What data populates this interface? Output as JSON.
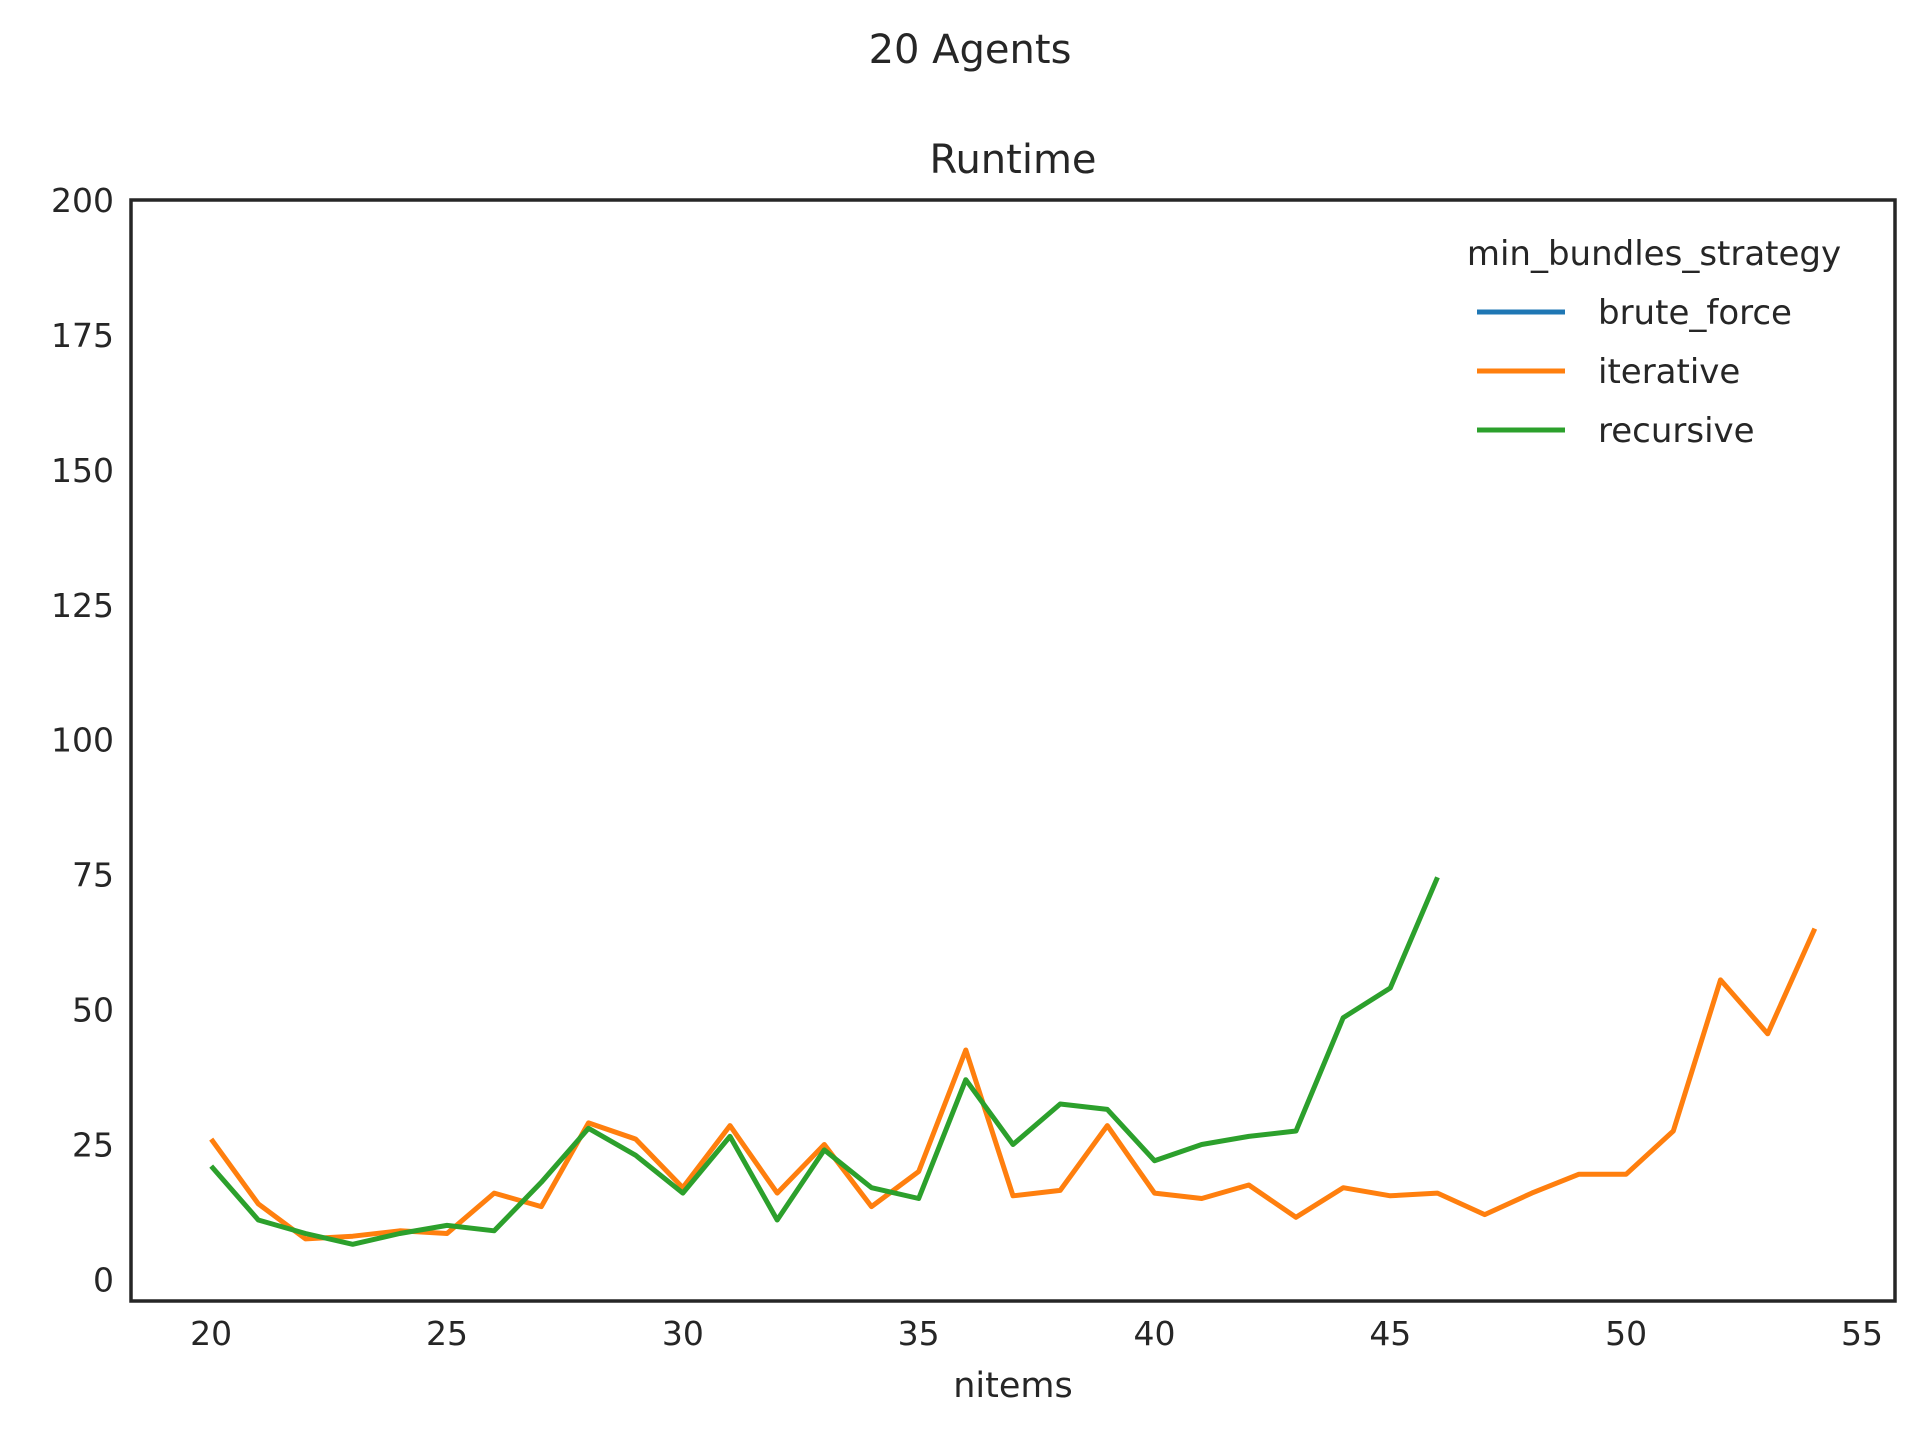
{
  "chart_data": {
    "type": "line",
    "suptitle": "20 Agents",
    "title": "Runtime",
    "xlabel": "nitems",
    "ylabel": "",
    "xlim": [
      18.3,
      55.7
    ],
    "ylim": [
      -4,
      200
    ],
    "xticks": [
      20,
      25,
      30,
      35,
      40,
      45,
      50,
      55
    ],
    "yticks": [
      0,
      25,
      50,
      75,
      100,
      125,
      150,
      175,
      200
    ],
    "grid": false,
    "legend": {
      "title": "min_bundles_strategy",
      "placement": "top-right"
    },
    "series": [
      {
        "name": "brute_force",
        "color": "#1f77b4",
        "x": [],
        "y": []
      },
      {
        "name": "iterative",
        "color": "#ff7f0e",
        "x": [
          20,
          21,
          22,
          23,
          24,
          25,
          26,
          27,
          28,
          29,
          30,
          31,
          32,
          33,
          34,
          35,
          36,
          37,
          38,
          39,
          40,
          41,
          42,
          43,
          44,
          45,
          46,
          47,
          48,
          49,
          50,
          51,
          52,
          53,
          54
        ],
        "y": [
          26,
          14,
          7.5,
          8,
          9,
          8.5,
          16,
          13.5,
          29,
          26,
          17,
          28.5,
          16,
          25,
          13.5,
          20,
          42.5,
          15.5,
          16.5,
          28.5,
          16,
          15,
          17.5,
          11.5,
          17,
          15.5,
          16,
          12,
          16,
          19.5,
          19.5,
          27.5,
          55.5,
          45.5,
          65
        ]
      },
      {
        "name": "recursive",
        "color": "#2ca02c",
        "x": [
          20,
          21,
          22,
          23,
          24,
          25,
          26,
          27,
          28,
          29,
          30,
          31,
          32,
          33,
          34,
          35,
          36,
          37,
          38,
          39,
          40,
          41,
          42,
          43,
          44,
          45,
          46
        ],
        "y": [
          21,
          11,
          8.5,
          6.5,
          8.5,
          10,
          9,
          18,
          28,
          23,
          16,
          26.5,
          11,
          24,
          17,
          15,
          37,
          25,
          32.5,
          31.5,
          22,
          25,
          26.5,
          27.5,
          48.5,
          54,
          74.5
        ]
      }
    ]
  }
}
